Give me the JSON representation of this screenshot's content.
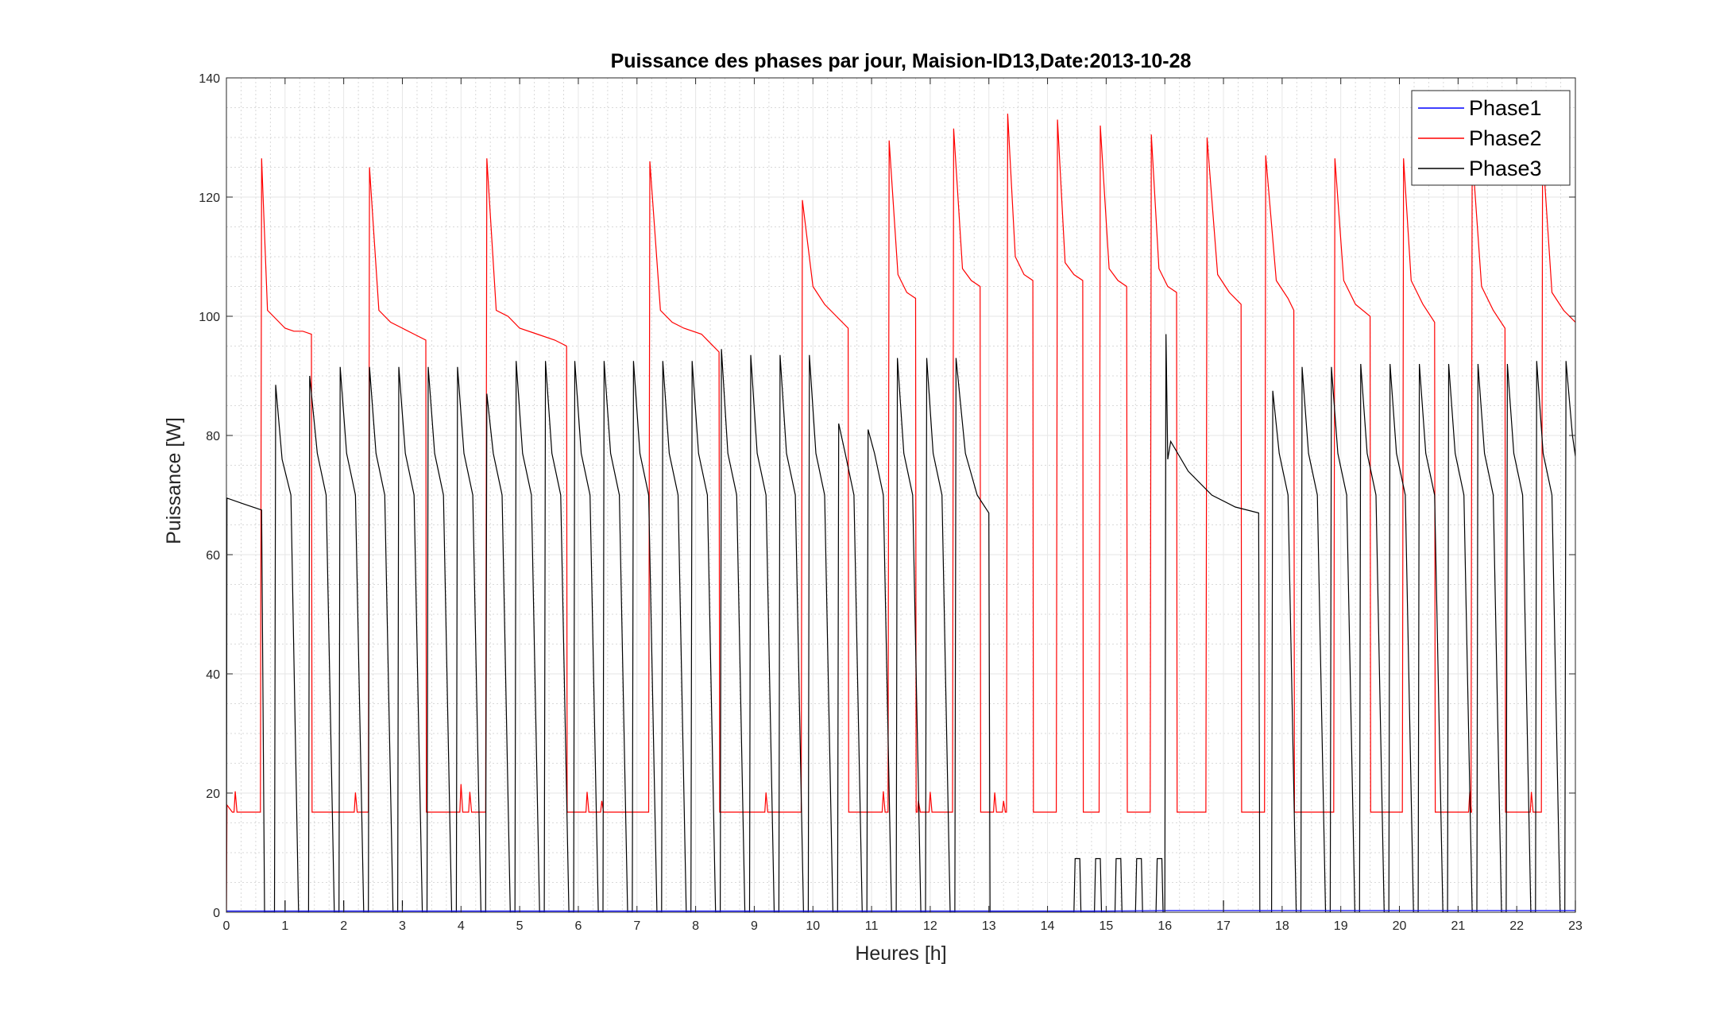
{
  "chart_data": {
    "type": "line",
    "title": "Puissance des phases par jour, Maision-ID13,Date:2013-10-28",
    "xlabel": "Heures [h]",
    "ylabel": "Puissance [W]",
    "xlim": [
      0,
      23
    ],
    "ylim": [
      0,
      140
    ],
    "xticks": [
      0,
      1,
      2,
      3,
      4,
      5,
      6,
      7,
      8,
      9,
      10,
      11,
      12,
      13,
      14,
      15,
      16,
      17,
      18,
      19,
      20,
      21,
      22,
      23
    ],
    "yticks": [
      0,
      20,
      40,
      60,
      80,
      100,
      120,
      140
    ],
    "grid": true,
    "minor_grid": true,
    "legend_position": "top-right",
    "series": [
      {
        "name": "Phase1",
        "color": "#0000ff",
        "x": [
          0,
          5,
          10,
          15,
          16,
          23
        ],
        "y": [
          0.2,
          0.2,
          0.2,
          0.2,
          0.3,
          0.3
        ]
      },
      {
        "name": "Phase2",
        "color": "#ff0000",
        "high_segments": [
          {
            "x": [
              0.58,
              0.6,
              0.7,
              0.8,
              1.0,
              1.15,
              1.3,
              1.45
            ],
            "y": [
              0,
              126.5,
              101,
              100,
              98,
              97.5,
              97.5,
              97
            ]
          },
          {
            "x": [
              2.42,
              2.44,
              2.6,
              2.8,
              3.0,
              3.2,
              3.4
            ],
            "y": [
              0,
              125,
              101,
              99,
              98,
              97,
              96
            ]
          },
          {
            "x": [
              4.42,
              4.44,
              4.6,
              4.8,
              5.0,
              5.3,
              5.6,
              5.8
            ],
            "y": [
              0,
              126.5,
              101,
              100,
              98,
              97,
              96,
              95
            ]
          },
          {
            "x": [
              7.2,
              7.22,
              7.4,
              7.6,
              7.8,
              8.1,
              8.4
            ],
            "y": [
              0,
              126,
              101,
              99,
              98,
              97,
              94
            ]
          },
          {
            "x": [
              9.8,
              9.82,
              10.0,
              10.2,
              10.4,
              10.6
            ],
            "y": [
              0,
              119.5,
              105,
              102,
              100,
              98
            ]
          },
          {
            "x": [
              11.28,
              11.3,
              11.45,
              11.6,
              11.75
            ],
            "y": [
              0,
              129.5,
              107,
              104,
              103
            ]
          },
          {
            "x": [
              12.38,
              12.4,
              12.55,
              12.7,
              12.85
            ],
            "y": [
              0,
              131.5,
              108,
              106,
              105
            ]
          },
          {
            "x": [
              13.3,
              13.32,
              13.45,
              13.6,
              13.75
            ],
            "y": [
              0,
              134,
              110,
              107,
              106
            ]
          },
          {
            "x": [
              14.15,
              14.17,
              14.3,
              14.45,
              14.6
            ],
            "y": [
              0,
              133,
              109,
              107,
              106
            ]
          },
          {
            "x": [
              14.88,
              14.9,
              15.05,
              15.2,
              15.35
            ],
            "y": [
              0,
              132,
              108,
              106,
              105
            ]
          },
          {
            "x": [
              15.75,
              15.77,
              15.9,
              16.05,
              16.2
            ],
            "y": [
              0,
              130.5,
              108,
              105,
              104
            ]
          },
          {
            "x": [
              16.7,
              16.72,
              16.9,
              17.1,
              17.3
            ],
            "y": [
              0,
              130,
              107,
              104,
              102
            ]
          },
          {
            "x": [
              17.7,
              17.72,
              17.9,
              18.1,
              18.2
            ],
            "y": [
              0,
              127,
              106,
              103,
              101
            ]
          },
          {
            "x": [
              18.88,
              18.9,
              19.05,
              19.25,
              19.5
            ],
            "y": [
              0,
              126.5,
              106,
              102,
              100
            ]
          },
          {
            "x": [
              20.05,
              20.07,
              20.2,
              20.4,
              20.6
            ],
            "y": [
              0,
              126.5,
              106,
              102,
              99
            ]
          },
          {
            "x": [
              21.22,
              21.24,
              21.4,
              21.6,
              21.8
            ],
            "y": [
              0,
              127.5,
              105,
              101,
              98
            ]
          },
          {
            "x": [
              22.42,
              22.44,
              22.6,
              22.8,
              23.0
            ],
            "y": [
              0,
              128,
              104,
              101,
              99
            ]
          }
        ],
        "baseline": 16.8,
        "spikes": [
          {
            "x": 0.15,
            "y": 20.3
          },
          {
            "x": 2.2,
            "y": 20.1
          },
          {
            "x": 4.0,
            "y": 21.5
          },
          {
            "x": 4.15,
            "y": 20.2
          },
          {
            "x": 6.15,
            "y": 20.2
          },
          {
            "x": 6.4,
            "y": 18.7
          },
          {
            "x": 7.2,
            "y": 20.2
          },
          {
            "x": 9.2,
            "y": 20.1
          },
          {
            "x": 11.2,
            "y": 20.3
          },
          {
            "x": 11.8,
            "y": 18.7
          },
          {
            "x": 12.0,
            "y": 20.2
          },
          {
            "x": 13.1,
            "y": 20.1
          },
          {
            "x": 13.25,
            "y": 18.7
          },
          {
            "x": 17.2,
            "y": 20.5
          },
          {
            "x": 21.2,
            "y": 20.3
          },
          {
            "x": 22.25,
            "y": 20.2
          }
        ]
      },
      {
        "name": "Phase3",
        "color": "#000000",
        "note_cycles": "repeating cycles",
        "cycles": [
          {
            "x": [
              0.0,
              0.01,
              0.3,
              0.6,
              0.65
            ],
            "y": [
              0,
              69.5,
              68.5,
              67.5,
              0
            ]
          },
          {
            "x": [
              0.82,
              0.84,
              0.95,
              1.1,
              1.23
            ],
            "y": [
              0,
              88.5,
              76,
              70,
              0
            ]
          },
          {
            "x": [
              1.4,
              1.42,
              1.55,
              1.7,
              1.84
            ],
            "y": [
              0,
              90,
              77,
              70,
              0
            ]
          },
          {
            "x": [
              1.92,
              1.94,
              2.05,
              2.2,
              2.34
            ],
            "y": [
              0,
              91.5,
              77,
              70,
              0
            ]
          },
          {
            "x": [
              2.42,
              2.44,
              2.55,
              2.7,
              2.84
            ],
            "y": [
              0,
              91.5,
              77,
              70,
              0
            ]
          },
          {
            "x": [
              2.92,
              2.94,
              3.05,
              3.2,
              3.34
            ],
            "y": [
              0,
              91.5,
              77,
              70,
              0
            ]
          },
          {
            "x": [
              3.42,
              3.44,
              3.55,
              3.7,
              3.84
            ],
            "y": [
              0,
              91.5,
              77,
              70,
              0
            ]
          },
          {
            "x": [
              3.92,
              3.94,
              4.05,
              4.2,
              4.34
            ],
            "y": [
              0,
              91.5,
              77,
              70,
              0
            ]
          },
          {
            "x": [
              4.42,
              4.44,
              4.55,
              4.7,
              4.84
            ],
            "y": [
              0,
              87,
              77,
              70,
              0
            ]
          },
          {
            "x": [
              4.92,
              4.94,
              5.05,
              5.2,
              5.34
            ],
            "y": [
              0,
              92.5,
              77,
              70,
              0
            ]
          },
          {
            "x": [
              5.42,
              5.44,
              5.55,
              5.7,
              5.84
            ],
            "y": [
              0,
              92.5,
              77,
              70,
              0
            ]
          },
          {
            "x": [
              5.92,
              5.94,
              6.05,
              6.2,
              6.34
            ],
            "y": [
              0,
              92.5,
              77,
              70,
              0
            ]
          },
          {
            "x": [
              6.42,
              6.44,
              6.55,
              6.7,
              6.84
            ],
            "y": [
              0,
              92.5,
              77,
              70,
              0
            ]
          },
          {
            "x": [
              6.92,
              6.94,
              7.05,
              7.2,
              7.34
            ],
            "y": [
              0,
              92.5,
              77,
              70,
              0
            ]
          },
          {
            "x": [
              7.42,
              7.44,
              7.55,
              7.7,
              7.84
            ],
            "y": [
              0,
              92.5,
              77,
              70,
              0
            ]
          },
          {
            "x": [
              7.92,
              7.94,
              8.05,
              8.2,
              8.34
            ],
            "y": [
              0,
              92.5,
              77,
              70,
              0
            ]
          },
          {
            "x": [
              8.42,
              8.44,
              8.55,
              8.7,
              8.84
            ],
            "y": [
              0,
              94.5,
              77,
              70,
              0
            ]
          },
          {
            "x": [
              8.92,
              8.94,
              9.05,
              9.2,
              9.34
            ],
            "y": [
              0,
              93.5,
              77,
              70,
              0
            ]
          },
          {
            "x": [
              9.42,
              9.44,
              9.55,
              9.7,
              9.84
            ],
            "y": [
              0,
              93.5,
              77,
              70,
              0
            ]
          },
          {
            "x": [
              9.92,
              9.94,
              10.05,
              10.2,
              10.34
            ],
            "y": [
              0,
              93.5,
              77,
              70,
              0
            ]
          },
          {
            "x": [
              10.42,
              10.44,
              10.55,
              10.7,
              10.84
            ],
            "y": [
              0,
              82,
              77,
              70,
              0
            ]
          },
          {
            "x": [
              10.92,
              10.94,
              11.05,
              11.2,
              11.34
            ],
            "y": [
              0,
              81,
              77,
              70,
              0
            ]
          },
          {
            "x": [
              11.42,
              11.44,
              11.55,
              11.7,
              11.84
            ],
            "y": [
              0,
              93,
              77,
              70,
              0
            ]
          },
          {
            "x": [
              11.92,
              11.94,
              12.05,
              12.2,
              12.34
            ],
            "y": [
              0,
              93,
              77,
              70,
              0
            ]
          },
          {
            "x": [
              12.42,
              12.44,
              12.6,
              12.8,
              13.0
            ],
            "y": [
              0,
              93,
              77,
              70,
              67
            ]
          },
          {
            "x": [
              13.0,
              13.02
            ],
            "y": [
              67,
              0
            ]
          },
          {
            "x": [
              14.45,
              14.47,
              14.55,
              14.57
            ],
            "y": [
              0,
              9,
              9,
              0
            ]
          },
          {
            "x": [
              14.8,
              14.82,
              14.9,
              14.92
            ],
            "y": [
              0,
              9,
              9,
              0
            ]
          },
          {
            "x": [
              15.15,
              15.17,
              15.25,
              15.27
            ],
            "y": [
              0,
              9,
              9,
              0
            ]
          },
          {
            "x": [
              15.5,
              15.52,
              15.6,
              15.62
            ],
            "y": [
              0,
              9,
              9,
              0
            ]
          },
          {
            "x": [
              15.85,
              15.87,
              15.95,
              15.97
            ],
            "y": [
              0,
              9,
              9,
              0
            ]
          },
          {
            "x": [
              16.0,
              16.02,
              16.05,
              16.1,
              16.4,
              16.8,
              17.2,
              17.6,
              17.62
            ],
            "y": [
              0,
              97,
              76,
              79,
              74,
              70,
              68,
              67,
              0
            ]
          },
          {
            "x": [
              17.82,
              17.84,
              17.95,
              18.1,
              18.24
            ],
            "y": [
              0,
              87.5,
              77,
              70,
              0
            ]
          },
          {
            "x": [
              18.32,
              18.34,
              18.45,
              18.6,
              18.74
            ],
            "y": [
              0,
              91.5,
              77,
              70,
              0
            ]
          },
          {
            "x": [
              18.82,
              18.84,
              18.95,
              19.1,
              19.24
            ],
            "y": [
              0,
              91.5,
              77,
              70,
              0
            ]
          },
          {
            "x": [
              19.32,
              19.34,
              19.45,
              19.6,
              19.74
            ],
            "y": [
              0,
              92,
              77,
              70,
              0
            ]
          },
          {
            "x": [
              19.82,
              19.84,
              19.95,
              20.1,
              20.24
            ],
            "y": [
              0,
              92,
              77,
              70,
              0
            ]
          },
          {
            "x": [
              20.32,
              20.34,
              20.45,
              20.6,
              20.74
            ],
            "y": [
              0,
              92,
              77,
              70,
              0
            ]
          },
          {
            "x": [
              20.82,
              20.84,
              20.95,
              21.1,
              21.24
            ],
            "y": [
              0,
              92,
              77,
              70,
              0
            ]
          },
          {
            "x": [
              21.32,
              21.34,
              21.45,
              21.6,
              21.74
            ],
            "y": [
              0,
              92,
              77,
              70,
              0
            ]
          },
          {
            "x": [
              21.82,
              21.84,
              21.95,
              22.1,
              22.24
            ],
            "y": [
              0,
              92,
              77,
              70,
              0
            ]
          },
          {
            "x": [
              22.32,
              22.34,
              22.45,
              22.6,
              22.74
            ],
            "y": [
              0,
              92.5,
              77,
              70,
              0
            ]
          },
          {
            "x": [
              22.82,
              22.84,
              22.95,
              23.0
            ],
            "y": [
              0,
              92.5,
              80,
              76.5
            ]
          }
        ],
        "small_spikes": [
          {
            "x": 1.0,
            "y": 2.0
          },
          {
            "x": 2.0,
            "y": 2.0
          },
          {
            "x": 3.0,
            "y": 2.0
          },
          {
            "x": 17.0,
            "y": 2.0
          },
          {
            "x": 23.0,
            "y": 2.0
          }
        ]
      }
    ]
  }
}
